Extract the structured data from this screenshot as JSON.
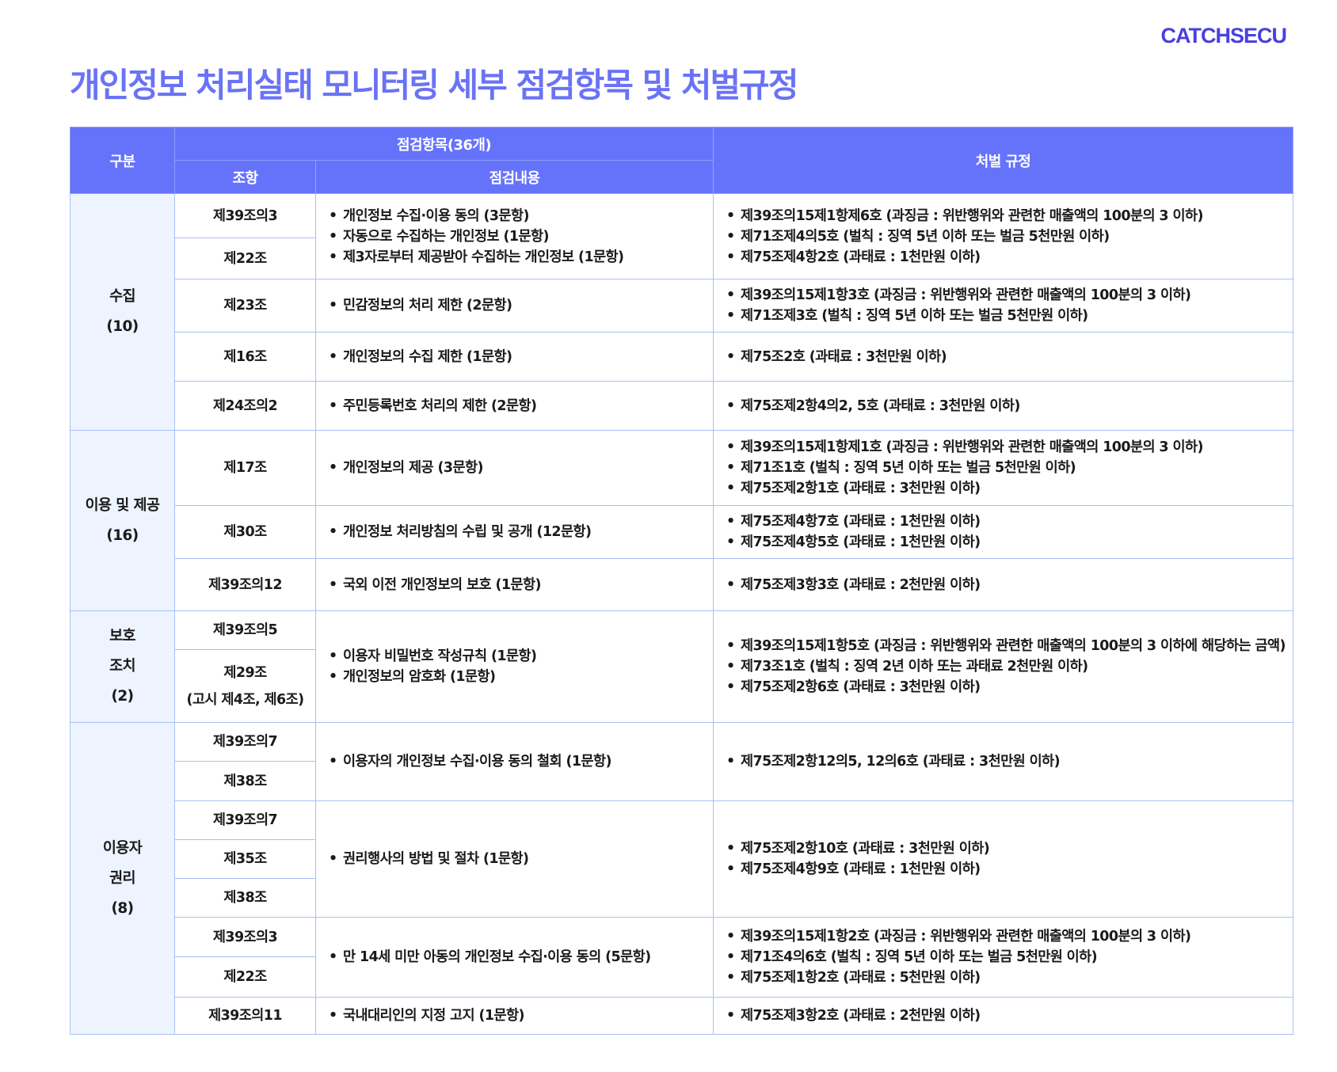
{
  "logo": "CATCHSECU",
  "title": "개인정보 처리실태 모니터링 세부 점검항목 및 처벌규정",
  "colors": {
    "header_bg": "#6573fb",
    "title": "#6a73f5",
    "category_bg": "#edf4ff",
    "border": "#a9c1f5",
    "logo": "#4b3fe0"
  },
  "header": {
    "category": "구분",
    "check_items": "점검항목(36개)",
    "article": "조항",
    "content": "점검내용",
    "penalty": "처벌 규정"
  },
  "groups": [
    {
      "category": [
        "수집",
        "(10)"
      ],
      "blocks": [
        {
          "articles": [
            "제39조의3",
            "제22조"
          ],
          "contents": [
            "개인정보 수집·이용 동의 (3문항)",
            "자동으로 수집하는 개인정보 (1문항)",
            "제3자로부터 제공받아 수집하는 개인정보 (1문항)"
          ],
          "penalties": [
            "제39조의15제1항제6호 (과징금 : 위반행위와 관련한 매출액의 100분의 3 이하)",
            "제71조제4의5호 (벌칙 : 징역 5년 이하 또는 벌금 5천만원 이하)",
            "제75조제4항2호 (과태료 : 1천만원 이하)"
          ]
        },
        {
          "articles": [
            "제23조"
          ],
          "contents": [
            "민감정보의 처리 제한 (2문항)"
          ],
          "penalties": [
            "제39조의15제1항3호 (과징금 : 위반행위와 관련한 매출액의 100분의 3 이하)",
            "제71조제3호 (벌칙 : 징역 5년 이하 또는 벌금 5천만원 이하)"
          ]
        },
        {
          "articles": [
            "제16조"
          ],
          "contents": [
            "개인정보의 수집 제한 (1문항)"
          ],
          "penalties": [
            "제75조2호 (과태료 : 3천만원 이하)"
          ]
        },
        {
          "articles": [
            "제24조의2"
          ],
          "contents": [
            "주민등록번호 처리의 제한 (2문항)"
          ],
          "penalties": [
            "제75조제2항4의2, 5호 (과태료 : 3천만원 이하)"
          ]
        }
      ]
    },
    {
      "category": [
        "이용 및 제공",
        "(16)"
      ],
      "blocks": [
        {
          "articles": [
            "제17조"
          ],
          "contents": [
            "개인정보의 제공 (3문항)"
          ],
          "penalties": [
            "제39조의15제1항제1호 (과징금 : 위반행위와 관련한 매출액의 100분의 3 이하)",
            "제71조1호 (벌칙 : 징역 5년 이하 또는 벌금 5천만원 이하)",
            "제75조제2항1호 (과태료 : 3천만원 이하)"
          ]
        },
        {
          "articles": [
            "제30조"
          ],
          "contents": [
            "개인정보 처리방침의 수립 및 공개 (12문항)"
          ],
          "penalties": [
            "제75조제4항7호 (과태료 : 1천만원 이하)",
            "제75조제4항5호 (과태료 : 1천만원 이하)"
          ]
        },
        {
          "articles": [
            "제39조의12"
          ],
          "contents": [
            "국외 이전 개인정보의 보호 (1문항)"
          ],
          "penalties": [
            "제75조제3항3호 (과태료 : 2천만원 이하)"
          ]
        }
      ]
    },
    {
      "category": [
        "보호",
        "조치",
        "(2)"
      ],
      "blocks": [
        {
          "articles": [
            "제39조의5",
            "제29조\n(고시 제4조, 제6조)"
          ],
          "contents": [
            "이용자 비밀번호 작성규칙 (1문항)",
            "개인정보의 암호화 (1문항)"
          ],
          "penalties": [
            "제39조의15제1항5호 (과징금 : 위반행위와 관련한 매출액의 100분의 3 이하에 해당하는 금액)",
            "제73조1호 (벌칙 : 징역 2년 이하 또는 과태료 2천만원 이하)",
            "제75조제2항6호 (과태료 : 3천만원 이하)"
          ]
        }
      ]
    },
    {
      "category": [
        "이용자",
        "권리",
        "(8)"
      ],
      "blocks": [
        {
          "articles": [
            "제39조의7",
            "제38조"
          ],
          "contents": [
            "이용자의 개인정보 수집·이용 동의 철회 (1문항)"
          ],
          "penalties": [
            "제75조제2항12의5, 12의6호 (과태료 : 3천만원 이하)"
          ]
        },
        {
          "articles": [
            "제39조의7",
            "제35조",
            "제38조"
          ],
          "contents": [
            "권리행사의 방법 및 절차 (1문항)"
          ],
          "penalties": [
            "제75조제2항10호 (과태료 : 3천만원 이하)",
            "제75조제4항9호 (과태료 : 1천만원 이하)"
          ]
        },
        {
          "articles": [
            "제39조의3",
            "제22조"
          ],
          "contents": [
            "만 14세 미만 아동의 개인정보 수집·이용 동의 (5문항)"
          ],
          "penalties": [
            "제39조의15제1항2호 (과징금 : 위반행위와 관련한 매출액의 100분의 3 이하)",
            "제71조4의6호 (벌칙 : 징역 5년 이하 또는 벌금 5천만원 이하)",
            "제75조제1항2호 (과태료 : 5천만원 이하)"
          ]
        },
        {
          "articles": [
            "제39조의11"
          ],
          "contents": [
            "국내대리인의 지정 고지 (1문항)"
          ],
          "penalties": [
            "제75조제3항2호 (과태료 : 2천만원 이하)"
          ]
        }
      ]
    }
  ]
}
